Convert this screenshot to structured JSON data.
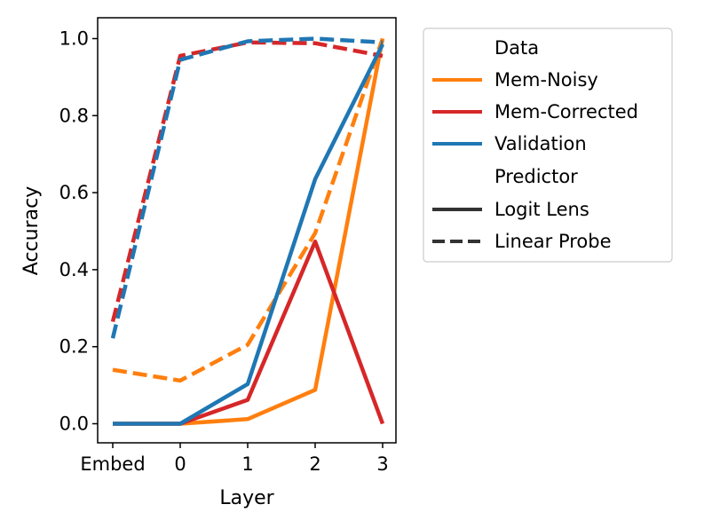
{
  "chart_data": {
    "type": "line",
    "xlabel": "Layer",
    "ylabel": "Accuracy",
    "categories": [
      "Embed",
      "0",
      "1",
      "2",
      "3"
    ],
    "yticks": [
      "0.0",
      "0.2",
      "0.4",
      "0.6",
      "0.8",
      "1.0"
    ],
    "ylim": [
      -0.05,
      1.03
    ],
    "grid": false,
    "legend_position": "outside-right",
    "legend": {
      "data_header": "Data",
      "predictor_header": "Predictor",
      "data_entries": [
        "Mem-Noisy",
        "Mem-Corrected",
        "Validation"
      ],
      "predictor_entries": [
        "Logit Lens",
        "Linear Probe"
      ]
    },
    "series": [
      {
        "name": "Mem-Noisy",
        "predictor": "Logit Lens",
        "color": "#ff7f0e",
        "style": "solid",
        "values": [
          0.0,
          0.0,
          0.012,
          0.088,
          1.0
        ]
      },
      {
        "name": "Mem-Noisy",
        "predictor": "Linear Probe",
        "color": "#ff7f0e",
        "style": "dashed",
        "values": [
          0.14,
          0.112,
          0.205,
          0.495,
          1.0
        ]
      },
      {
        "name": "Mem-Corrected",
        "predictor": "Logit Lens",
        "color": "#d62728",
        "style": "solid",
        "values": [
          0.0,
          0.0,
          0.062,
          0.473,
          0.0
        ]
      },
      {
        "name": "Mem-Corrected",
        "predictor": "Linear Probe",
        "color": "#d62728",
        "style": "dashed",
        "values": [
          0.265,
          0.955,
          0.99,
          0.988,
          0.955
        ]
      },
      {
        "name": "Validation",
        "predictor": "Logit Lens",
        "color": "#1f77b4",
        "style": "solid",
        "values": [
          0.0,
          0.0,
          0.103,
          0.635,
          0.985
        ]
      },
      {
        "name": "Validation",
        "predictor": "Linear Probe",
        "color": "#1f77b4",
        "style": "dashed",
        "values": [
          0.222,
          0.945,
          0.993,
          1.0,
          0.99
        ]
      }
    ],
    "colors": {
      "Mem-Noisy": "#ff7f0e",
      "Mem-Corrected": "#d62728",
      "Validation": "#1f77b4",
      "predictor": "#333333"
    }
  }
}
